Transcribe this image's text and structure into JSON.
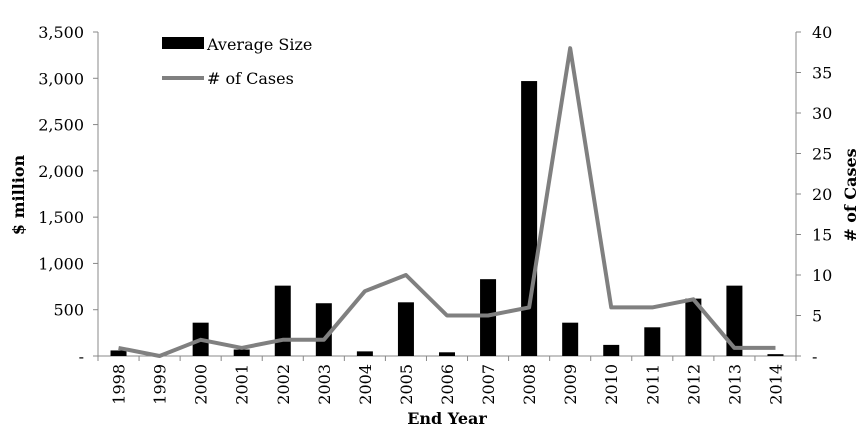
{
  "chart_data": {
    "type": "bar",
    "title": "",
    "categories": [
      "1998",
      "1999",
      "2000",
      "2001",
      "2002",
      "2003",
      "2004",
      "2005",
      "2006",
      "2007",
      "2008",
      "2009",
      "2010",
      "2011",
      "2012",
      "2013",
      "2014"
    ],
    "series": [
      {
        "name": "Average Size",
        "type": "bar",
        "axis": "left",
        "values": [
          60,
          0,
          360,
          70,
          760,
          570,
          50,
          580,
          40,
          830,
          2970,
          360,
          120,
          310,
          620,
          760,
          20
        ]
      },
      {
        "name": "# of Cases",
        "type": "line",
        "axis": "right",
        "values": [
          1,
          0,
          2,
          1,
          2,
          2,
          8,
          10,
          5,
          5,
          6,
          38,
          6,
          6,
          7,
          1,
          1
        ]
      }
    ],
    "xlabel": "End Year",
    "ylabel": "$ million",
    "y2label": "# of Cases",
    "ylim": [
      0,
      3500
    ],
    "y2lim": [
      0,
      40
    ],
    "yticks": [
      "-",
      "500",
      "1,000",
      "1,500",
      "2,000",
      "2,500",
      "3,000",
      "3,500"
    ],
    "y2ticks": [
      "-",
      "5",
      "10",
      "15",
      "20",
      "25",
      "30",
      "35",
      "40"
    ],
    "legend": [
      "Average Size",
      "# of Cases"
    ],
    "legend_position": "top-left",
    "grid": false,
    "colors": {
      "bar": "#000000",
      "line": "#808080",
      "axis": "#888888"
    }
  }
}
